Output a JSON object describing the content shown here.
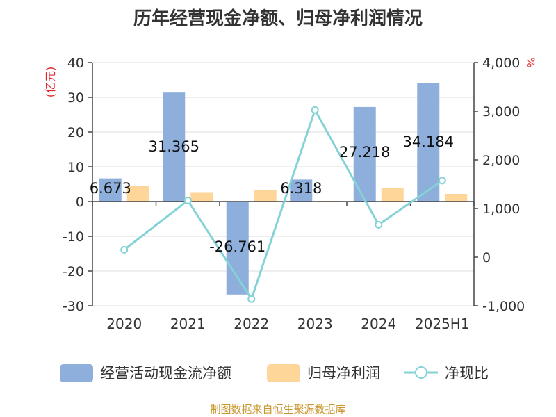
{
  "chart_data": {
    "type": "bar",
    "title": "历年经营现金净额、归母净利润情况",
    "source": "制图数据来自恒生聚源数据库",
    "categories": [
      "2020",
      "2021",
      "2022",
      "2023",
      "2024",
      "2025H1"
    ],
    "y_left": {
      "unit": "(亿元)",
      "ylim": [
        -30,
        40
      ],
      "ticks": [
        40,
        30,
        20,
        10,
        0,
        -10,
        -20,
        -30
      ]
    },
    "y_right": {
      "unit": "%",
      "ylim": [
        -1000,
        4000
      ],
      "ticks": [
        4000,
        3000,
        2000,
        1000,
        0,
        -1000
      ],
      "tick_labels": [
        "4,000",
        "3,000",
        "2,000",
        "1,000",
        "0",
        "-1,000"
      ]
    },
    "grid": true,
    "legend_position": "bottom",
    "series": [
      {
        "name": "经营活动现金流净额",
        "type": "bar",
        "axis": "left",
        "color": "#8eaedc",
        "values": [
          6.673,
          31.365,
          -26.761,
          6.318,
          27.218,
          34.184
        ],
        "labels": [
          "6.673",
          "31.365",
          "-26.761",
          "6.318",
          "27.218",
          "34.184"
        ]
      },
      {
        "name": "归母净利润",
        "type": "bar",
        "axis": "left",
        "color": "#ffd699",
        "values": [
          4.4,
          2.7,
          3.3,
          0.2,
          4.0,
          2.2
        ]
      },
      {
        "name": "净现比",
        "type": "line",
        "axis": "right",
        "color": "#84d2d6",
        "values": [
          152,
          1164,
          -860,
          3024,
          666,
          1574
        ]
      }
    ]
  }
}
